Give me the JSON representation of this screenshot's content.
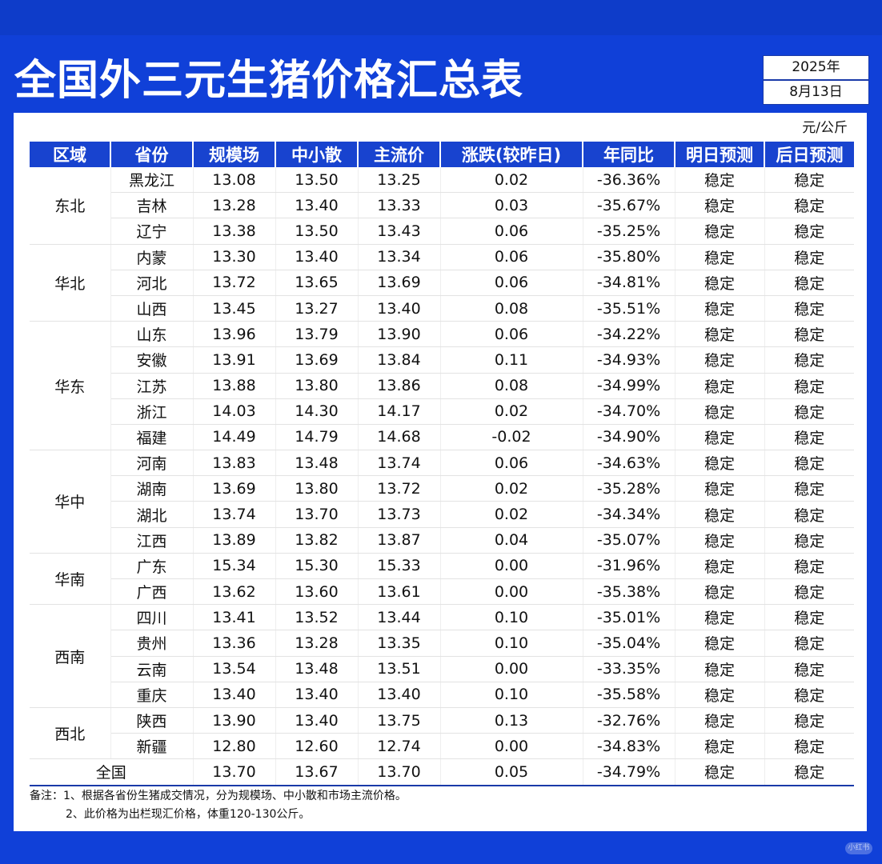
{
  "title": "全国外三元生猪价格汇总表",
  "date": {
    "year": "2025年",
    "day": "8月13日"
  },
  "unit": "元/公斤",
  "headers": [
    "区域",
    "省份",
    "规模场",
    "中小散",
    "主流价",
    "涨跌(较昨日)",
    "年同比",
    "明日预测",
    "后日预测"
  ],
  "regions": [
    {
      "name": "东北",
      "rows": [
        {
          "province": "黑龙江",
          "large": "13.08",
          "small": "13.50",
          "mainstream": "13.25",
          "change": "0.02",
          "yoy": "-36.36%",
          "tomorrow": "稳定",
          "after": "稳定"
        },
        {
          "province": "吉林",
          "large": "13.28",
          "small": "13.40",
          "mainstream": "13.33",
          "change": "0.03",
          "yoy": "-35.67%",
          "tomorrow": "稳定",
          "after": "稳定"
        },
        {
          "province": "辽宁",
          "large": "13.38",
          "small": "13.50",
          "mainstream": "13.43",
          "change": "0.06",
          "yoy": "-35.25%",
          "tomorrow": "稳定",
          "after": "稳定"
        }
      ]
    },
    {
      "name": "华北",
      "rows": [
        {
          "province": "内蒙",
          "large": "13.30",
          "small": "13.40",
          "mainstream": "13.34",
          "change": "0.06",
          "yoy": "-35.80%",
          "tomorrow": "稳定",
          "after": "稳定"
        },
        {
          "province": "河北",
          "large": "13.72",
          "small": "13.65",
          "mainstream": "13.69",
          "change": "0.06",
          "yoy": "-34.81%",
          "tomorrow": "稳定",
          "after": "稳定"
        },
        {
          "province": "山西",
          "large": "13.45",
          "small": "13.27",
          "mainstream": "13.40",
          "change": "0.08",
          "yoy": "-35.51%",
          "tomorrow": "稳定",
          "after": "稳定"
        }
      ]
    },
    {
      "name": "华东",
      "rows": [
        {
          "province": "山东",
          "large": "13.96",
          "small": "13.79",
          "mainstream": "13.90",
          "change": "0.06",
          "yoy": "-34.22%",
          "tomorrow": "稳定",
          "after": "稳定"
        },
        {
          "province": "安徽",
          "large": "13.91",
          "small": "13.69",
          "mainstream": "13.84",
          "change": "0.11",
          "yoy": "-34.93%",
          "tomorrow": "稳定",
          "after": "稳定"
        },
        {
          "province": "江苏",
          "large": "13.88",
          "small": "13.80",
          "mainstream": "13.86",
          "change": "0.08",
          "yoy": "-34.99%",
          "tomorrow": "稳定",
          "after": "稳定"
        },
        {
          "province": "浙江",
          "large": "14.03",
          "small": "14.30",
          "mainstream": "14.17",
          "change": "0.02",
          "yoy": "-34.70%",
          "tomorrow": "稳定",
          "after": "稳定"
        },
        {
          "province": "福建",
          "large": "14.49",
          "small": "14.79",
          "mainstream": "14.68",
          "change": "-0.02",
          "yoy": "-34.90%",
          "tomorrow": "稳定",
          "after": "稳定"
        }
      ]
    },
    {
      "name": "华中",
      "rows": [
        {
          "province": "河南",
          "large": "13.83",
          "small": "13.48",
          "mainstream": "13.74",
          "change": "0.06",
          "yoy": "-34.63%",
          "tomorrow": "稳定",
          "after": "稳定"
        },
        {
          "province": "湖南",
          "large": "13.69",
          "small": "13.80",
          "mainstream": "13.72",
          "change": "0.02",
          "yoy": "-35.28%",
          "tomorrow": "稳定",
          "after": "稳定"
        },
        {
          "province": "湖北",
          "large": "13.74",
          "small": "13.70",
          "mainstream": "13.73",
          "change": "0.02",
          "yoy": "-34.34%",
          "tomorrow": "稳定",
          "after": "稳定"
        },
        {
          "province": "江西",
          "large": "13.89",
          "small": "13.82",
          "mainstream": "13.87",
          "change": "0.04",
          "yoy": "-35.07%",
          "tomorrow": "稳定",
          "after": "稳定"
        }
      ]
    },
    {
      "name": "华南",
      "rows": [
        {
          "province": "广东",
          "large": "15.34",
          "small": "15.30",
          "mainstream": "15.33",
          "change": "0.00",
          "yoy": "-31.96%",
          "tomorrow": "稳定",
          "after": "稳定"
        },
        {
          "province": "广西",
          "large": "13.62",
          "small": "13.60",
          "mainstream": "13.61",
          "change": "0.00",
          "yoy": "-35.38%",
          "tomorrow": "稳定",
          "after": "稳定"
        }
      ]
    },
    {
      "name": "西南",
      "rows": [
        {
          "province": "四川",
          "large": "13.41",
          "small": "13.52",
          "mainstream": "13.44",
          "change": "0.10",
          "yoy": "-35.01%",
          "tomorrow": "稳定",
          "after": "稳定"
        },
        {
          "province": "贵州",
          "large": "13.36",
          "small": "13.28",
          "mainstream": "13.35",
          "change": "0.10",
          "yoy": "-35.04%",
          "tomorrow": "稳定",
          "after": "稳定"
        },
        {
          "province": "云南",
          "large": "13.54",
          "small": "13.48",
          "mainstream": "13.51",
          "change": "0.00",
          "yoy": "-33.35%",
          "tomorrow": "稳定",
          "after": "稳定"
        },
        {
          "province": "重庆",
          "large": "13.40",
          "small": "13.40",
          "mainstream": "13.40",
          "change": "0.10",
          "yoy": "-35.58%",
          "tomorrow": "稳定",
          "after": "稳定"
        }
      ]
    },
    {
      "name": "西北",
      "rows": [
        {
          "province": "陕西",
          "large": "13.90",
          "small": "13.40",
          "mainstream": "13.75",
          "change": "0.13",
          "yoy": "-32.76%",
          "tomorrow": "稳定",
          "after": "稳定"
        },
        {
          "province": "新疆",
          "large": "12.80",
          "small": "12.60",
          "mainstream": "12.74",
          "change": "0.00",
          "yoy": "-34.83%",
          "tomorrow": "稳定",
          "after": "稳定"
        }
      ]
    }
  ],
  "national": {
    "label": "全国",
    "large": "13.70",
    "small": "13.67",
    "mainstream": "13.70",
    "change": "0.05",
    "yoy": "-34.79%",
    "tomorrow": "稳定",
    "after": "稳定"
  },
  "notes": [
    "备注：1、根据各省份生猪成交情况，分为规模场、中小散和市场主流价格。",
    "2、此价格为出栏现汇价格，体重120-130公斤。"
  ],
  "watermark": "小红书",
  "colors": {
    "background": "#1040d8",
    "header": "#1843cf",
    "up": "#e0262a",
    "down": "#17a44d"
  }
}
